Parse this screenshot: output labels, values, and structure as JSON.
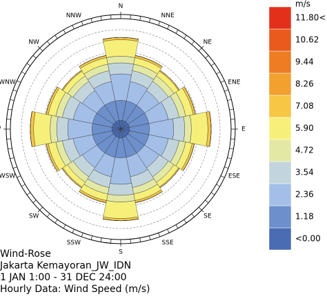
{
  "chart_data": {
    "type": "windrose",
    "title": "Wind-Rose",
    "location": "Jakarta Kemayoran_JW_IDN",
    "period": "1 JAN 1:00 - 31 DEC 24:00",
    "description": "Hourly Data: Wind Speed (m/s)",
    "legend_title": "m/s",
    "categories": [
      "N",
      "NNE",
      "NE",
      "ENE",
      "E",
      "ESE",
      "SE",
      "SSE",
      "S",
      "SSW",
      "SW",
      "WSW",
      "W",
      "WNW",
      "NW",
      "NNW"
    ],
    "rlim": [
      0,
      10
    ],
    "series": [
      {
        "name": "<0.00",
        "color": "#4a6cb3",
        "values": [
          0.8,
          0.8,
          0.8,
          0.8,
          0.8,
          0.8,
          0.8,
          0.8,
          0.8,
          0.8,
          0.8,
          0.8,
          0.8,
          0.8,
          0.8,
          0.8
        ]
      },
      {
        "name": "1.18",
        "color": "#6d8fcb",
        "values": [
          1.8,
          1.8,
          1.8,
          1.8,
          1.8,
          1.8,
          1.8,
          1.8,
          1.8,
          1.8,
          1.8,
          1.8,
          1.8,
          1.8,
          1.8,
          1.8
        ]
      },
      {
        "name": "2.36",
        "color": "#a3bfe8",
        "values": [
          2.4,
          1.8,
          1.6,
          1.8,
          2.2,
          1.8,
          1.6,
          1.8,
          2.4,
          1.8,
          1.6,
          1.8,
          2.2,
          1.8,
          1.6,
          1.8
        ]
      },
      {
        "name": "3.54",
        "color": "#c3d5dc",
        "values": [
          1,
          1,
          1,
          1,
          1,
          1,
          1,
          1,
          1,
          1,
          1,
          1,
          1,
          1,
          1,
          1
        ]
      },
      {
        "name": "4.72",
        "color": "#e3e8a4",
        "values": [
          0.6,
          0.6,
          0.6,
          0.6,
          0.6,
          0.6,
          0.6,
          0.6,
          0.6,
          0.6,
          0.6,
          0.6,
          0.6,
          0.6,
          0.6,
          0.6
        ]
      },
      {
        "name": "5.90",
        "color": "#f6f07a",
        "values": [
          1.5,
          0.6,
          0.5,
          0.7,
          1.5,
          0.6,
          0.5,
          0.6,
          1.5,
          0.6,
          0.5,
          0.7,
          1.5,
          0.7,
          0.5,
          0.6
        ]
      },
      {
        "name": "7.08",
        "color": "#f6c644",
        "values": [
          0.2,
          0.2,
          0.1,
          0.2,
          0.3,
          0.2,
          0.1,
          0.2,
          0.2,
          0.2,
          0.1,
          0.2,
          0.3,
          0.2,
          0.1,
          0.2
        ]
      },
      {
        "name": "8.26",
        "color": "#f2a12e",
        "values": [
          0,
          0,
          0,
          0,
          0,
          0,
          0,
          0,
          0,
          0,
          0,
          0,
          0,
          0,
          0,
          0
        ]
      },
      {
        "name": "9.44",
        "color": "#ee7c22",
        "values": [
          0,
          0,
          0,
          0,
          0,
          0,
          0,
          0,
          0,
          0,
          0,
          0,
          0,
          0,
          0,
          0
        ]
      },
      {
        "name": "10.62",
        "color": "#ea5a1c",
        "values": [
          0,
          0,
          0,
          0,
          0,
          0,
          0,
          0,
          0,
          0,
          0,
          0,
          0,
          0,
          0,
          0
        ]
      },
      {
        "name": "11.80<",
        "color": "#e2301a",
        "values": [
          0,
          0,
          0,
          0,
          0,
          0,
          0,
          0,
          0,
          0,
          0,
          0,
          0,
          0,
          0,
          0
        ]
      }
    ]
  }
}
